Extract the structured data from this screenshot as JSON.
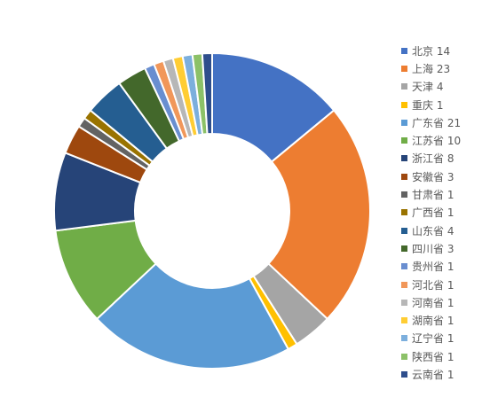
{
  "chart_data": {
    "type": "pie",
    "variant": "doughnut",
    "title": "",
    "legend_position": "right",
    "categories": [
      "北京",
      "上海",
      "天津",
      "重庆",
      "广东省",
      "江苏省",
      "浙江省",
      "安徽省",
      "甘肃省",
      "广西省",
      "山东省",
      "四川省",
      "贵州省",
      "河北省",
      "河南省",
      "湖南省",
      "辽宁省",
      "陕西省",
      "云南省"
    ],
    "values": [
      14,
      23,
      4,
      1,
      21,
      10,
      8,
      3,
      1,
      1,
      4,
      3,
      1,
      1,
      1,
      1,
      1,
      1,
      1
    ],
    "legend_labels": [
      "北京 14",
      "上海 23",
      "天津 4",
      "重庆 1",
      "广东省 21",
      "江苏省 10",
      "浙江省 8",
      "安徽省 3",
      "甘肃省 1",
      "广西省 1",
      "山东省 4",
      "四川省 3",
      "贵州省 1",
      "河北省 1",
      "河南省 1",
      "湖南省 1",
      "辽宁省 1",
      "陕西省 1",
      "云南省 1"
    ],
    "colors": [
      "#4472C4",
      "#ED7D31",
      "#A5A5A5",
      "#FFC000",
      "#5B9BD5",
      "#70AD47",
      "#264478",
      "#9E480E",
      "#636363",
      "#997300",
      "#255E91",
      "#43682B",
      "#698ED0",
      "#F1975A",
      "#B7B7B7",
      "#FFCD33",
      "#7CAFDD",
      "#8CC168",
      "#2E4E8C"
    ]
  }
}
